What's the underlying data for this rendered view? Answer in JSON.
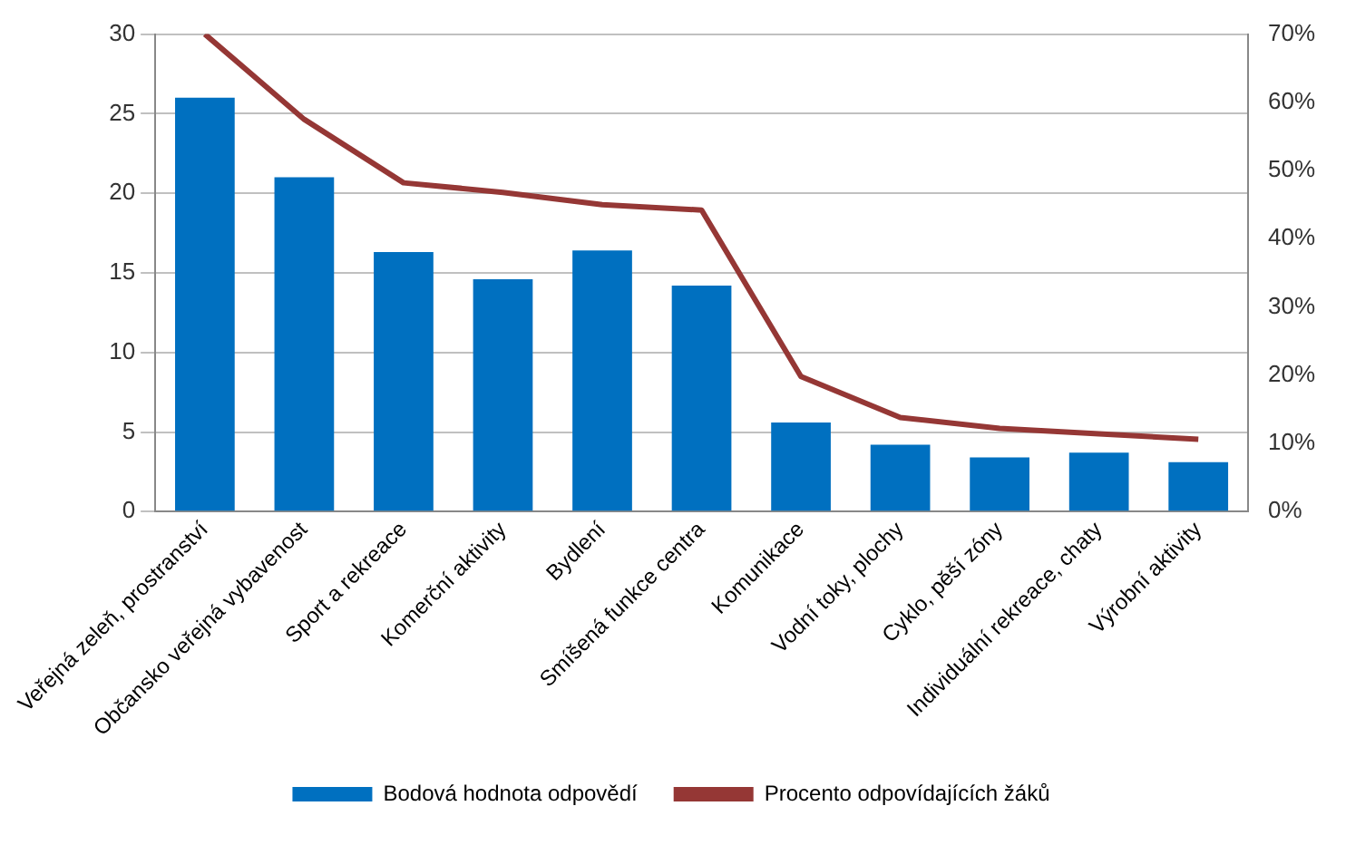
{
  "chart_data": {
    "type": "bar",
    "categories": [
      "Veřejná zeleň, prostranství",
      "Občansko veřejná vybavenost",
      "Sport a rekreace",
      "Komerční aktivity",
      "Bydlení",
      "Smíšená funkce centra",
      "Komunikace",
      "Vodní toky, plochy",
      "Cyklo, pěší zóny",
      "Individuální rekreace, chaty",
      "Výrobní aktivity"
    ],
    "series": [
      {
        "name": "Bodová hodnota odpovědí",
        "color": "#0070c0",
        "values": [
          26,
          21,
          16.3,
          14.6,
          16.4,
          14.2,
          5.6,
          4.2,
          3.4,
          3.7,
          3.1
        ]
      },
      {
        "name": "Procento odpovídajících žáků",
        "type": "line",
        "axis": "y2",
        "color": "#953735",
        "values": [
          70,
          57.5,
          48.2,
          46.8,
          45,
          44.2,
          19.8,
          13.8,
          12.2,
          11.4,
          10.6
        ]
      }
    ],
    "ylim": [
      0,
      30
    ],
    "yticks": [
      0,
      5,
      10,
      15,
      20,
      25,
      30
    ],
    "y2lim": [
      0,
      70
    ],
    "y2ticks": [
      {
        "value": 0,
        "label": "0%"
      },
      {
        "value": 10,
        "label": "10%"
      },
      {
        "value": 20,
        "label": "20%"
      },
      {
        "value": 30,
        "label": "30%"
      },
      {
        "value": 40,
        "label": "40%"
      },
      {
        "value": 50,
        "label": "50%"
      },
      {
        "value": 60,
        "label": "60%"
      },
      {
        "value": 70,
        "label": "70%"
      }
    ],
    "grid": "y",
    "legend": "bottom",
    "marker": "none"
  }
}
